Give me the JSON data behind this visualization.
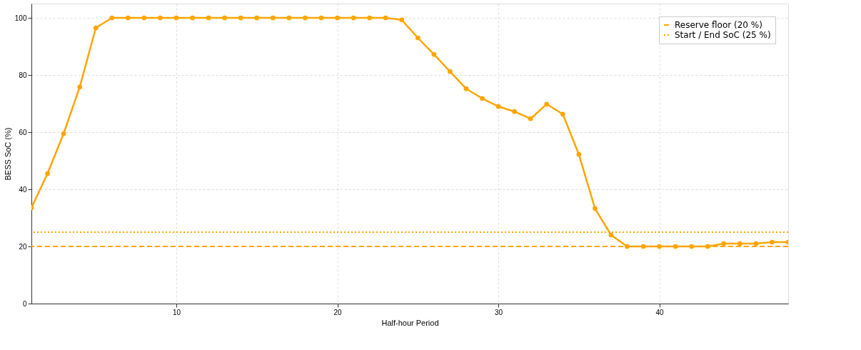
{
  "chart_data": {
    "type": "line",
    "xlabel": "Half-hour Period",
    "ylabel": "BESS SoC (%)",
    "x": [
      1,
      2,
      3,
      4,
      5,
      6,
      7,
      8,
      9,
      10,
      11,
      12,
      13,
      14,
      15,
      16,
      17,
      18,
      19,
      20,
      21,
      22,
      23,
      24,
      25,
      26,
      27,
      28,
      29,
      30,
      31,
      32,
      33,
      34,
      35,
      36,
      37,
      38,
      39,
      40,
      41,
      42,
      43,
      44,
      45,
      46,
      47,
      48
    ],
    "series": [
      {
        "color": "#ffa500",
        "values": [
          33.5,
          45.5,
          59.5,
          75.8,
          96.5,
          100,
          100,
          100,
          100,
          100,
          100,
          100,
          100,
          100,
          100,
          100,
          100,
          100,
          100,
          100,
          100,
          100,
          100,
          99.3,
          93,
          87.2,
          81.2,
          75.2,
          71.8,
          69,
          67.2,
          64.7,
          69.8,
          66.3,
          52.2,
          33.3,
          24,
          20,
          20,
          20,
          20,
          20,
          20,
          21,
          21,
          21,
          21.5,
          21.5
        ]
      }
    ],
    "xlim": [
      1,
      48
    ],
    "xticks": [
      10,
      20,
      30,
      40
    ],
    "ylim": [
      0,
      105
    ],
    "yticks": [
      0,
      20,
      40,
      60,
      80,
      100
    ],
    "ref_lines": [
      {
        "axis": "y",
        "value": 20,
        "label": "Reserve floor (20 %)",
        "color": "#ffa500",
        "line_style": "dashed"
      },
      {
        "axis": "y",
        "value": 25,
        "label": "Start / End SoC (25 %)",
        "color": "#ffa500",
        "line_style": "dotted"
      }
    ],
    "grid": true,
    "legend": "top right",
    "marker": "circle",
    "line_style": "solid"
  }
}
